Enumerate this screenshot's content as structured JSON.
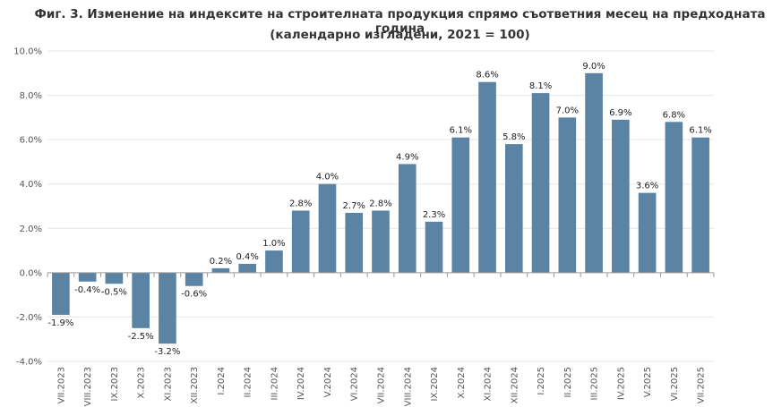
{
  "chart_data": {
    "type": "bar",
    "title": "Фиг. 3. Изменение на индексите на строителната продукция спрямо съответния месец на предходната година",
    "subtitle": "(календарно изгладени, 2021 = 100)",
    "xlabel": "",
    "ylabel": "",
    "ylim": [
      -4,
      10
    ],
    "yticks": [
      "10.0%",
      "8.0%",
      "6.0%",
      "4.0%",
      "2.0%",
      "0.0%",
      "-2.0%",
      "-4.0%"
    ],
    "ytick_values": [
      10,
      8,
      6,
      4,
      2,
      0,
      -2,
      -4
    ],
    "grid": true,
    "legend": "none",
    "bar_color": "#5b83a3",
    "categories": [
      "VII.2023",
      "VIII.2023",
      "IX.2023",
      "X.2023",
      "XI.2023",
      "XII.2023",
      "I.2024",
      "II.2024",
      "III.2024",
      "IV.2024",
      "V.2024",
      "VI.2024",
      "VII.2024",
      "VIII.2024",
      "IX.2024",
      "X.2024",
      "XI.2024",
      "XII.2024",
      "I.2025",
      "II.2025",
      "III.2025",
      "IV.2025",
      "V.2025",
      "VI.2025",
      "VII.2025"
    ],
    "values": [
      -1.9,
      -0.4,
      -0.5,
      -2.5,
      -3.2,
      -0.6,
      0.2,
      0.4,
      1.0,
      2.8,
      4.0,
      2.7,
      2.8,
      4.9,
      2.3,
      6.1,
      8.6,
      5.8,
      8.1,
      7.0,
      9.0,
      6.9,
      3.6,
      6.8,
      6.1
    ],
    "labels": [
      "-1.9%",
      "-0.4%",
      "-0.5%",
      "-2.5%",
      "-3.2%",
      "-0.6%",
      "0.2%",
      "0.4%",
      "1.0%",
      "2.8%",
      "4.0%",
      "2.7%",
      "2.8%",
      "4.9%",
      "2.3%",
      "6.1%",
      "8.6%",
      "5.8%",
      "8.1%",
      "7.0%",
      "9.0%",
      "6.9%",
      "3.6%",
      "6.8%",
      "6.1%"
    ]
  }
}
